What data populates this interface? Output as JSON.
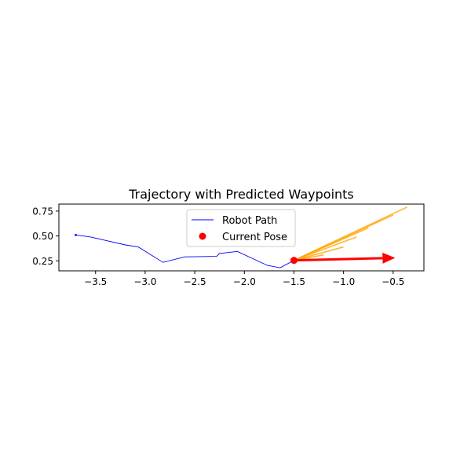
{
  "chart_data": {
    "type": "line",
    "title": "Trajectory with Predicted Waypoints",
    "xlabel": "",
    "ylabel": "",
    "xlim": [
      -3.87,
      -0.19
    ],
    "ylim": [
      0.15,
      0.82
    ],
    "xticks": [
      -3.5,
      -3.0,
      -2.5,
      -2.0,
      -1.5,
      -1.0,
      -0.5
    ],
    "xtick_labels": [
      "−3.5",
      "−3.0",
      "−2.5",
      "−2.0",
      "−1.5",
      "−1.0",
      "−0.5"
    ],
    "yticks": [
      0.25,
      0.5,
      0.75
    ],
    "ytick_labels": [
      "0.25",
      "0.50",
      "0.75"
    ],
    "grid": false,
    "legend_position": "top-center",
    "series": [
      {
        "name": "Robot Path",
        "kind": "line",
        "color": "#0000ff",
        "x": [
          -3.7,
          -3.55,
          -3.2,
          -3.07,
          -2.82,
          -2.6,
          -2.28,
          -2.25,
          -2.2,
          -2.07,
          -1.77,
          -1.64,
          -1.5
        ],
        "y": [
          0.51,
          0.49,
          0.41,
          0.39,
          0.235,
          0.29,
          0.295,
          0.325,
          0.33,
          0.345,
          0.205,
          0.18,
          0.255
        ]
      },
      {
        "name": "Current Pose",
        "kind": "point",
        "color": "#ff0000",
        "x": [
          -1.5
        ],
        "y": [
          0.255
        ]
      }
    ],
    "predicted_waypoints": {
      "color": "#ffa500",
      "origin": [
        -1.5,
        0.255
      ],
      "endpoints": [
        [
          -1.2,
          0.31
        ],
        [
          -1.0,
          0.39
        ],
        [
          -0.87,
          0.49
        ],
        [
          -0.75,
          0.58
        ],
        [
          -0.5,
          0.71
        ],
        [
          -0.36,
          0.79
        ]
      ]
    },
    "heading_arrow": {
      "color": "#ff0000",
      "from": [
        -1.5,
        0.255
      ],
      "to": [
        -0.48,
        0.28
      ]
    },
    "legend": [
      {
        "label": "Robot Path",
        "marker": "line",
        "color": "#0000ff"
      },
      {
        "label": "Current Pose",
        "marker": "dot",
        "color": "#ff0000"
      }
    ]
  }
}
